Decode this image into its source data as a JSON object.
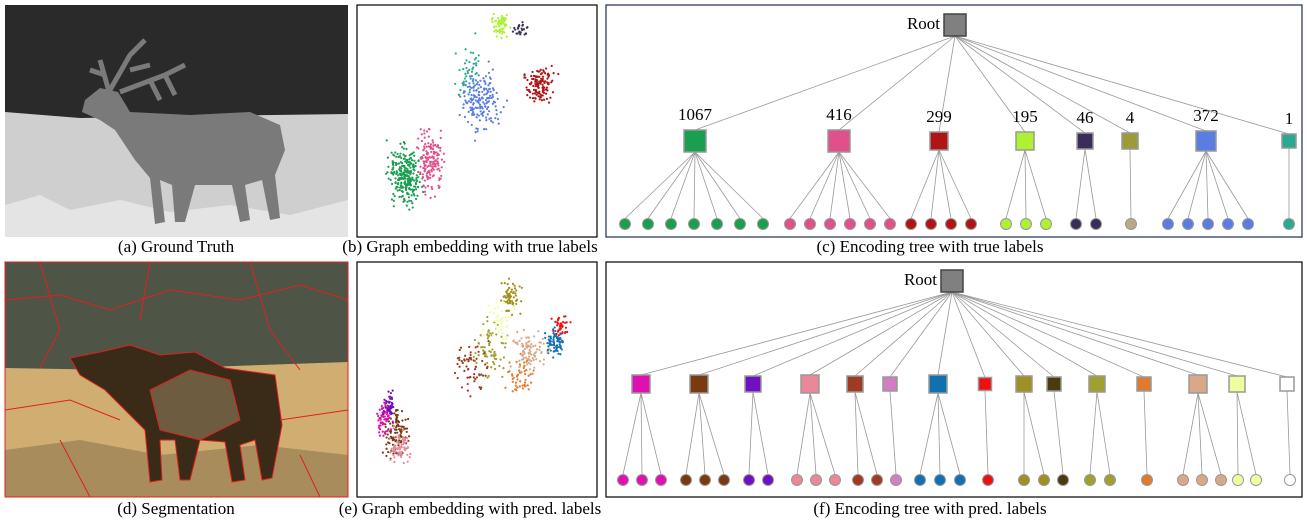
{
  "captions": [
    "(a) Ground Truth",
    "(b) Graph embedding with true labels",
    "(c) Encoding tree with true labels",
    "(d) Segmentation",
    "(e) Graph embedding with pred. labels",
    "(f) Encoding tree with pred. labels"
  ],
  "tree_true": {
    "root": "Root",
    "children": [
      {
        "label": "1067",
        "color": "#1a9e50",
        "leaves": [
          "#1a9e50",
          "#1a9e50",
          "#1a9e50",
          "#1a9e50",
          "#1a9e50",
          "#1a9e50",
          "#1a9e50"
        ]
      },
      {
        "label": "416",
        "color": "#e0508a",
        "leaves": [
          "#e0508a",
          "#e0508a",
          "#e0508a",
          "#e0508a",
          "#e0508a",
          "#e0508a"
        ]
      },
      {
        "label": "299",
        "color": "#b01515",
        "leaves": [
          "#b01515",
          "#b01515",
          "#b01515",
          "#b01515"
        ]
      },
      {
        "label": "195",
        "color": "#aef032",
        "leaves": [
          "#aef032",
          "#aef032",
          "#aef032"
        ]
      },
      {
        "label": "46",
        "color": "#3a2d5a",
        "leaves": [
          "#3a2d5a",
          "#3a2d5a"
        ]
      },
      {
        "label": "4",
        "color": "#9e9a3a",
        "leaves": [
          "#b8a888"
        ]
      },
      {
        "label": "372",
        "color": "#5a7ee0",
        "leaves": [
          "#5a7ee0",
          "#5a7ee0",
          "#5a7ee0",
          "#5a7ee0",
          "#5a7ee0"
        ]
      },
      {
        "label": "1",
        "color": "#2aaa90",
        "leaves": [
          "#2aaa90"
        ]
      }
    ]
  },
  "tree_pred": {
    "root": "Root",
    "children": [
      {
        "color": "#e010b0",
        "leaves": [
          "#e010b0",
          "#e010b0",
          "#e010b0"
        ]
      },
      {
        "color": "#7a3a10",
        "leaves": [
          "#7a3a10",
          "#7a3a10",
          "#7a3a10"
        ]
      },
      {
        "color": "#7010c0",
        "leaves": [
          "#7010c0",
          "#7010c0"
        ]
      },
      {
        "color": "#e88898",
        "leaves": [
          "#e88898",
          "#e88898",
          "#e88898"
        ]
      },
      {
        "color": "#a03a20",
        "leaves": [
          "#a03a20",
          "#a03a20"
        ]
      },
      {
        "color": "#d080c0",
        "leaves": [
          "#d080c0"
        ]
      },
      {
        "color": "#1070b0",
        "leaves": [
          "#1070b0",
          "#1070b0",
          "#1070b0"
        ]
      },
      {
        "color": "#ee1010",
        "leaves": [
          "#ee1010"
        ]
      },
      {
        "color": "#a09020",
        "leaves": [
          "#a09020",
          "#a09020"
        ]
      },
      {
        "color": "#4a3a10",
        "leaves": [
          "#4a3a10"
        ]
      },
      {
        "color": "#a0a030",
        "leaves": [
          "#a0a030",
          "#a0a030"
        ]
      },
      {
        "color": "#e07a30",
        "leaves": [
          "#e07a30"
        ]
      },
      {
        "color": "#d8a888",
        "leaves": [
          "#d8a888",
          "#d8a888",
          "#d8a888"
        ]
      },
      {
        "color": "#eeffa0",
        "leaves": [
          "#eeffa0",
          "#eeffa0"
        ]
      },
      {
        "color": "#ffffff",
        "leaves": [
          "#ffffff"
        ]
      }
    ]
  }
}
